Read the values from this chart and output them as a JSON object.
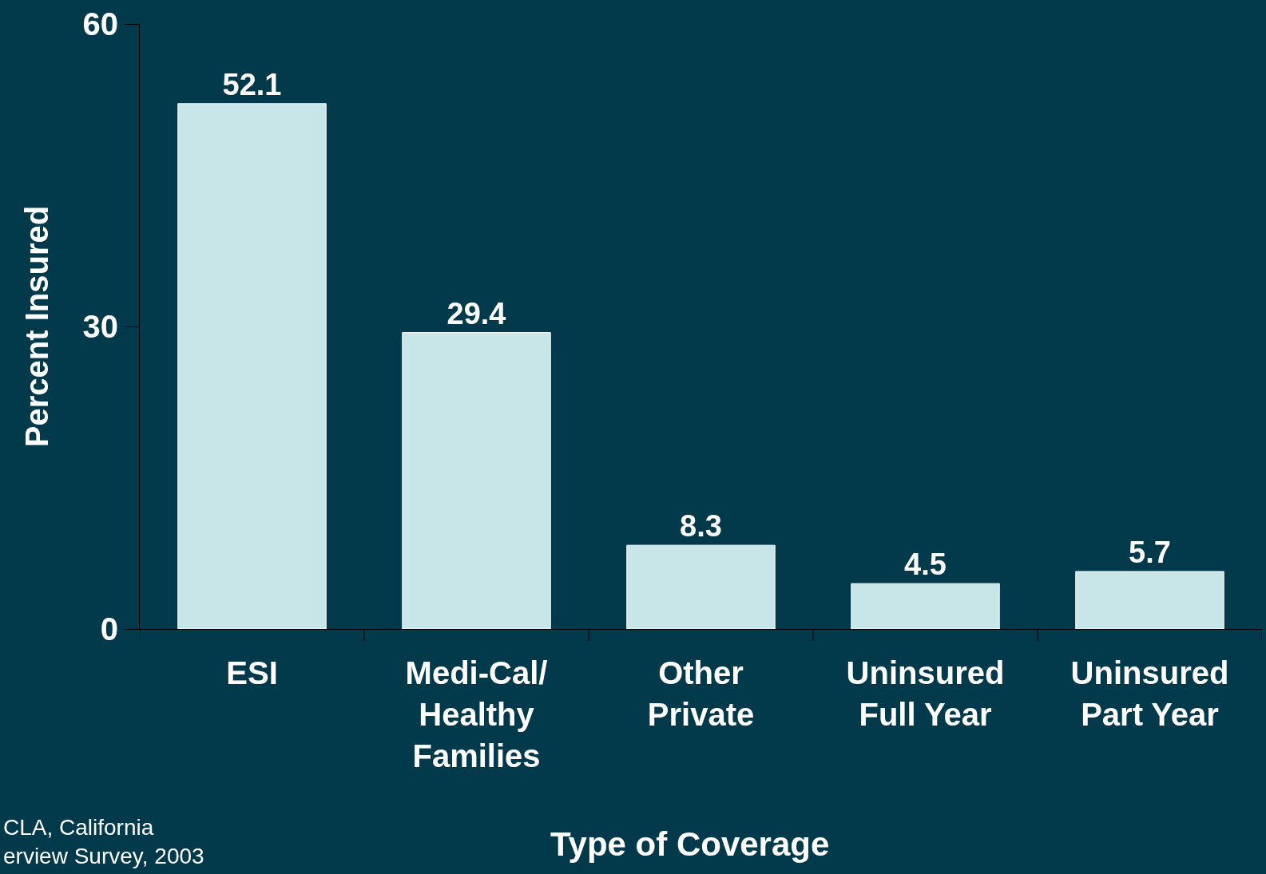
{
  "chart_data": {
    "type": "bar",
    "categories": [
      "ESI",
      "Medi-Cal/\nHealthy\nFamilies",
      "Other\nPrivate",
      "Uninsured\nFull Year",
      "Uninsured\nPart Year"
    ],
    "values": [
      52.1,
      29.4,
      8.3,
      4.5,
      5.7
    ],
    "color": "#c8e6e8",
    "ylim": [
      0,
      60
    ],
    "yticks": [
      0,
      30,
      60
    ],
    "xlabel": "Type of Coverage",
    "ylabel": "Percent Insured",
    "data_labels": true,
    "grid": false,
    "legend": false,
    "annotations": [
      "CLA, California\nerview Survey, 2003"
    ]
  }
}
